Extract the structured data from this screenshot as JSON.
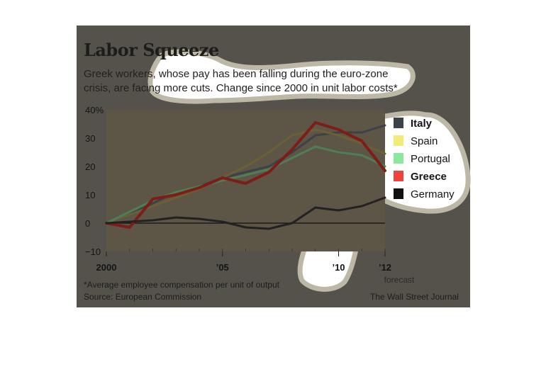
{
  "header": {
    "title": "Labor Squeeze",
    "subtitle": "Greek workers, whose pay has been falling during the euro-zone crisis, are facing more cuts. Change since 2000 in unit labor costs*"
  },
  "footer": {
    "footnote": "*Average employee compensation per unit of output",
    "source": "Source: European Commission",
    "credit": "The Wall Street Journal"
  },
  "colors": {
    "panel": "#55524b",
    "plot_area": "#5d5546",
    "blob_fill": "#ffffff",
    "blob_border": "#bdb7a6"
  },
  "chart_data": {
    "type": "line",
    "x": [
      2000,
      2001,
      2002,
      2003,
      2004,
      2005,
      2006,
      2007,
      2008,
      2009,
      2010,
      2011,
      2012
    ],
    "x_tick_labels": [
      {
        "value": 2000,
        "label": "2000"
      },
      {
        "value": 2005,
        "label": "’05"
      },
      {
        "value": 2010,
        "label": "’10"
      },
      {
        "value": 2012,
        "label": "’12"
      }
    ],
    "forecast_label": "forecast",
    "y_ticks": [
      -10,
      0,
      10,
      20,
      30,
      40
    ],
    "y_tick_labels": [
      "−10",
      "0",
      "10",
      "20",
      "30",
      "40%"
    ],
    "ylim": [
      -10,
      40
    ],
    "xlim": [
      2000,
      2012
    ],
    "zero_line": true,
    "legend_position": "right",
    "series": [
      {
        "name": "Italy",
        "color": "#3c414a",
        "bold": true,
        "values": [
          0,
          3,
          7,
          11,
          13,
          16,
          18,
          20,
          25,
          31,
          32,
          32,
          34.5
        ]
      },
      {
        "name": "Spain",
        "color": "#6b6035",
        "bold": false,
        "values": [
          0,
          3,
          6,
          9,
          12,
          16,
          20,
          25,
          31,
          33,
          31,
          28,
          24.5
        ]
      },
      {
        "name": "Portugal",
        "color": "#4f7d56",
        "bold": false,
        "values": [
          0,
          4,
          8,
          11,
          13,
          15,
          17,
          19,
          23,
          27,
          25,
          24,
          20
        ]
      },
      {
        "name": "Greece",
        "color": "#7e1d16",
        "bold": true,
        "values": [
          0,
          -1.5,
          8.5,
          10,
          12.5,
          16,
          14,
          18,
          26,
          35.5,
          33,
          29,
          18.5
        ]
      },
      {
        "name": "Germany",
        "color": "#222222",
        "bold": false,
        "values": [
          0,
          0.5,
          1,
          2,
          1.5,
          0.5,
          -1.5,
          -2,
          0,
          5.5,
          4.5,
          6,
          9
        ]
      }
    ]
  }
}
